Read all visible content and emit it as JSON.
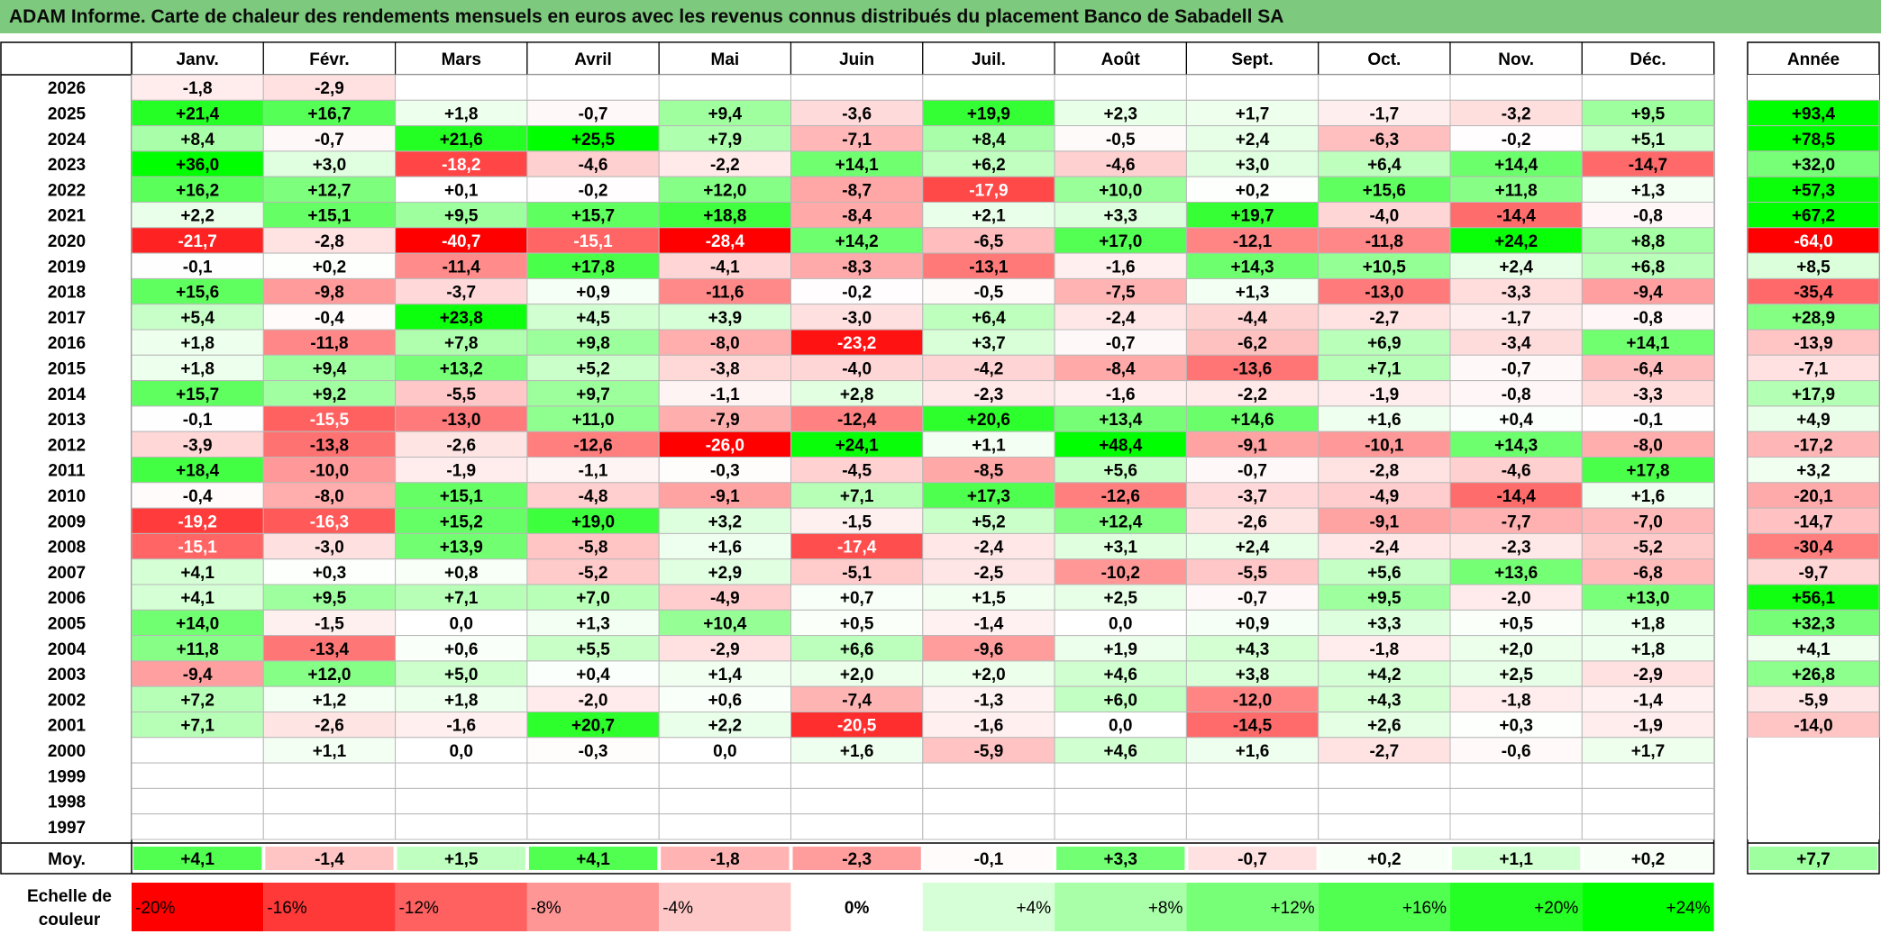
{
  "title": "ADAM Informe. Carte de chaleur des rendements mensuels en euros avec les revenus connus distribués du placement Banco de Sabadell SA",
  "chart_data": {
    "type": "heatmap",
    "title": "ADAM Informe. Carte de chaleur des rendements mensuels en euros avec les revenus connus distribués du placement Banco de Sabadell SA",
    "columns": [
      "Janv.",
      "Févr.",
      "Mars",
      "Avril",
      "Mai",
      "Juin",
      "Juil.",
      "Août",
      "Sept.",
      "Oct.",
      "Nov.",
      "Déc."
    ],
    "annual_label": "Année",
    "rows": [
      {
        "year": "2026",
        "months": [
          "-1,8",
          "-2,9",
          "",
          "",
          "",
          "",
          "",
          "",
          "",
          "",
          "",
          ""
        ],
        "annual": ""
      },
      {
        "year": "2025",
        "months": [
          "+21,4",
          "+16,7",
          "+1,8",
          "-0,7",
          "+9,4",
          "-3,6",
          "+19,9",
          "+2,3",
          "+1,7",
          "-1,7",
          "-3,2",
          "+9,5"
        ],
        "annual": "+93,4"
      },
      {
        "year": "2024",
        "months": [
          "+8,4",
          "-0,7",
          "+21,6",
          "+25,5",
          "+7,9",
          "-7,1",
          "+8,4",
          "-0,5",
          "+2,4",
          "-6,3",
          "-0,2",
          "+5,1"
        ],
        "annual": "+78,5"
      },
      {
        "year": "2023",
        "months": [
          "+36,0",
          "+3,0",
          "-18,2",
          "-4,6",
          "-2,2",
          "+14,1",
          "+6,2",
          "-4,6",
          "+3,0",
          "+6,4",
          "+14,4",
          "-14,7"
        ],
        "annual": "+32,0"
      },
      {
        "year": "2022",
        "months": [
          "+16,2",
          "+12,7",
          "+0,1",
          "-0,2",
          "+12,0",
          "-8,7",
          "-17,9",
          "+10,0",
          "+0,2",
          "+15,6",
          "+11,8",
          "+1,3"
        ],
        "annual": "+57,3"
      },
      {
        "year": "2021",
        "months": [
          "+2,2",
          "+15,1",
          "+9,5",
          "+15,7",
          "+18,8",
          "-8,4",
          "+2,1",
          "+3,3",
          "+19,7",
          "-4,0",
          "-14,4",
          "-0,8"
        ],
        "annual": "+67,2"
      },
      {
        "year": "2020",
        "months": [
          "-21,7",
          "-2,8",
          "-40,7",
          "-15,1",
          "-28,4",
          "+14,2",
          "-6,5",
          "+17,0",
          "-12,1",
          "-11,8",
          "+24,2",
          "+8,8"
        ],
        "annual": "-64,0"
      },
      {
        "year": "2019",
        "months": [
          "-0,1",
          "+0,2",
          "-11,4",
          "+17,8",
          "-4,1",
          "-8,3",
          "-13,1",
          "-1,6",
          "+14,3",
          "+10,5",
          "+2,4",
          "+6,8"
        ],
        "annual": "+8,5"
      },
      {
        "year": "2018",
        "months": [
          "+15,6",
          "-9,8",
          "-3,7",
          "+0,9",
          "-11,6",
          "-0,2",
          "-0,5",
          "-7,5",
          "+1,3",
          "-13,0",
          "-3,3",
          "-9,4"
        ],
        "annual": "-35,4"
      },
      {
        "year": "2017",
        "months": [
          "+5,4",
          "-0,4",
          "+23,8",
          "+4,5",
          "+3,9",
          "-3,0",
          "+6,4",
          "-2,4",
          "-4,4",
          "-2,7",
          "-1,7",
          "-0,8"
        ],
        "annual": "+28,9"
      },
      {
        "year": "2016",
        "months": [
          "+1,8",
          "-11,8",
          "+7,8",
          "+9,8",
          "-8,0",
          "-23,2",
          "+3,7",
          "-0,7",
          "-6,2",
          "+6,9",
          "-3,4",
          "+14,1"
        ],
        "annual": "-13,9"
      },
      {
        "year": "2015",
        "months": [
          "+1,8",
          "+9,4",
          "+13,2",
          "+5,2",
          "-3,8",
          "-4,0",
          "-4,2",
          "-8,4",
          "-13,6",
          "+7,1",
          "-0,7",
          "-6,4"
        ],
        "annual": "-7,1"
      },
      {
        "year": "2014",
        "months": [
          "+15,7",
          "+9,2",
          "-5,5",
          "+9,7",
          "-1,1",
          "+2,8",
          "-2,3",
          "-1,6",
          "-2,2",
          "-1,9",
          "-0,8",
          "-3,3"
        ],
        "annual": "+17,9"
      },
      {
        "year": "2013",
        "months": [
          "-0,1",
          "-15,5",
          "-13,0",
          "+11,0",
          "-7,9",
          "-12,4",
          "+20,6",
          "+13,4",
          "+14,6",
          "+1,6",
          "+0,4",
          "-0,1"
        ],
        "annual": "+4,9"
      },
      {
        "year": "2012",
        "months": [
          "-3,9",
          "-13,8",
          "-2,6",
          "-12,6",
          "-26,0",
          "+24,1",
          "+1,1",
          "+48,4",
          "-9,1",
          "-10,1",
          "+14,3",
          "-8,0"
        ],
        "annual": "-17,2"
      },
      {
        "year": "2011",
        "months": [
          "+18,4",
          "-10,0",
          "-1,9",
          "-1,1",
          "-0,3",
          "-4,5",
          "-8,5",
          "+5,6",
          "-0,7",
          "-2,8",
          "-4,6",
          "+17,8"
        ],
        "annual": "+3,2"
      },
      {
        "year": "2010",
        "months": [
          "-0,4",
          "-8,0",
          "+15,1",
          "-4,8",
          "-9,1",
          "+7,1",
          "+17,3",
          "-12,6",
          "-3,7",
          "-4,9",
          "-14,4",
          "+1,6"
        ],
        "annual": "-20,1"
      },
      {
        "year": "2009",
        "months": [
          "-19,2",
          "-16,3",
          "+15,2",
          "+19,0",
          "+3,2",
          "-1,5",
          "+5,2",
          "+12,4",
          "-2,6",
          "-9,1",
          "-7,7",
          "-7,0"
        ],
        "annual": "-14,7"
      },
      {
        "year": "2008",
        "months": [
          "-15,1",
          "-3,0",
          "+13,9",
          "-5,8",
          "+1,6",
          "-17,4",
          "-2,4",
          "+3,1",
          "+2,4",
          "-2,4",
          "-2,3",
          "-5,2"
        ],
        "annual": "-30,4"
      },
      {
        "year": "2007",
        "months": [
          "+4,1",
          "+0,3",
          "+0,8",
          "-5,2",
          "+2,9",
          "-5,1",
          "-2,5",
          "-10,2",
          "-5,5",
          "+5,6",
          "+13,6",
          "-6,8"
        ],
        "annual": "-9,7"
      },
      {
        "year": "2006",
        "months": [
          "+4,1",
          "+9,5",
          "+7,1",
          "+7,0",
          "-4,9",
          "+0,7",
          "+1,5",
          "+2,5",
          "-0,7",
          "+9,5",
          "-2,0",
          "+13,0"
        ],
        "annual": "+56,1"
      },
      {
        "year": "2005",
        "months": [
          "+14,0",
          "-1,5",
          "0,0",
          "+1,3",
          "+10,4",
          "+0,5",
          "-1,4",
          "0,0",
          "+0,9",
          "+3,3",
          "+0,5",
          "+1,8"
        ],
        "annual": "+32,3"
      },
      {
        "year": "2004",
        "months": [
          "+11,8",
          "-13,4",
          "+0,6",
          "+5,5",
          "-2,9",
          "+6,6",
          "-9,6",
          "+1,9",
          "+4,3",
          "-1,8",
          "+2,0",
          "+1,8"
        ],
        "annual": "+4,1"
      },
      {
        "year": "2003",
        "months": [
          "-9,4",
          "+12,0",
          "+5,0",
          "+0,4",
          "+1,4",
          "+2,0",
          "+2,0",
          "+4,6",
          "+3,8",
          "+4,2",
          "+2,5",
          "-2,9"
        ],
        "annual": "+26,8"
      },
      {
        "year": "2002",
        "months": [
          "+7,2",
          "+1,2",
          "+1,8",
          "-2,0",
          "+0,6",
          "-7,4",
          "-1,3",
          "+6,0",
          "-12,0",
          "+4,3",
          "-1,8",
          "-1,4"
        ],
        "annual": "-5,9"
      },
      {
        "year": "2001",
        "months": [
          "+7,1",
          "-2,6",
          "-1,6",
          "+20,7",
          "+2,2",
          "-20,5",
          "-1,6",
          "0,0",
          "-14,5",
          "+2,6",
          "+0,3",
          "-1,9"
        ],
        "annual": "-14,0"
      },
      {
        "year": "2000",
        "months": [
          "",
          "+1,1",
          "0,0",
          "-0,3",
          "0,0",
          "+1,6",
          "-5,9",
          "+4,6",
          "+1,6",
          "-2,7",
          "-0,6",
          "+1,7"
        ],
        "annual": ""
      },
      {
        "year": "1999",
        "months": [
          "",
          "",
          "",
          "",
          "",
          "",
          "",
          "",
          "",
          "",
          "",
          ""
        ],
        "annual": ""
      },
      {
        "year": "1998",
        "months": [
          "",
          "",
          "",
          "",
          "",
          "",
          "",
          "",
          "",
          "",
          "",
          ""
        ],
        "annual": ""
      },
      {
        "year": "1997",
        "months": [
          "",
          "",
          "",
          "",
          "",
          "",
          "",
          "",
          "",
          "",
          "",
          ""
        ],
        "annual": ""
      }
    ],
    "average": {
      "label": "Moy.",
      "months": [
        "+4,1",
        "-1,4",
        "+1,5",
        "+4,1",
        "-1,8",
        "-2,3",
        "-0,1",
        "+3,3",
        "-0,7",
        "+0,2",
        "+1,1",
        "+0,2"
      ],
      "annual": "+7,7"
    },
    "scale": {
      "label_line1": "Echelle de",
      "label_line2": "couleur",
      "labels": [
        "-20%",
        "-16%",
        "-12%",
        "-8%",
        "-4%",
        "0%",
        "+4%",
        "+8%",
        "+12%",
        "+16%",
        "+20%",
        "+24%"
      ],
      "colors": [
        "#ff0000",
        "#ff3838",
        "#ff6060",
        "#ff9696",
        "#ffc8c8",
        "#ffffff",
        "#d7ffd7",
        "#a8ffa8",
        "#78ff78",
        "#50ff50",
        "#26ff26",
        "#00ff00"
      ]
    },
    "colors": {
      "title_bar": "#7dc97d",
      "negative": "#ff0000",
      "positive": "#00ff00",
      "neutral": "#ffffff"
    }
  }
}
